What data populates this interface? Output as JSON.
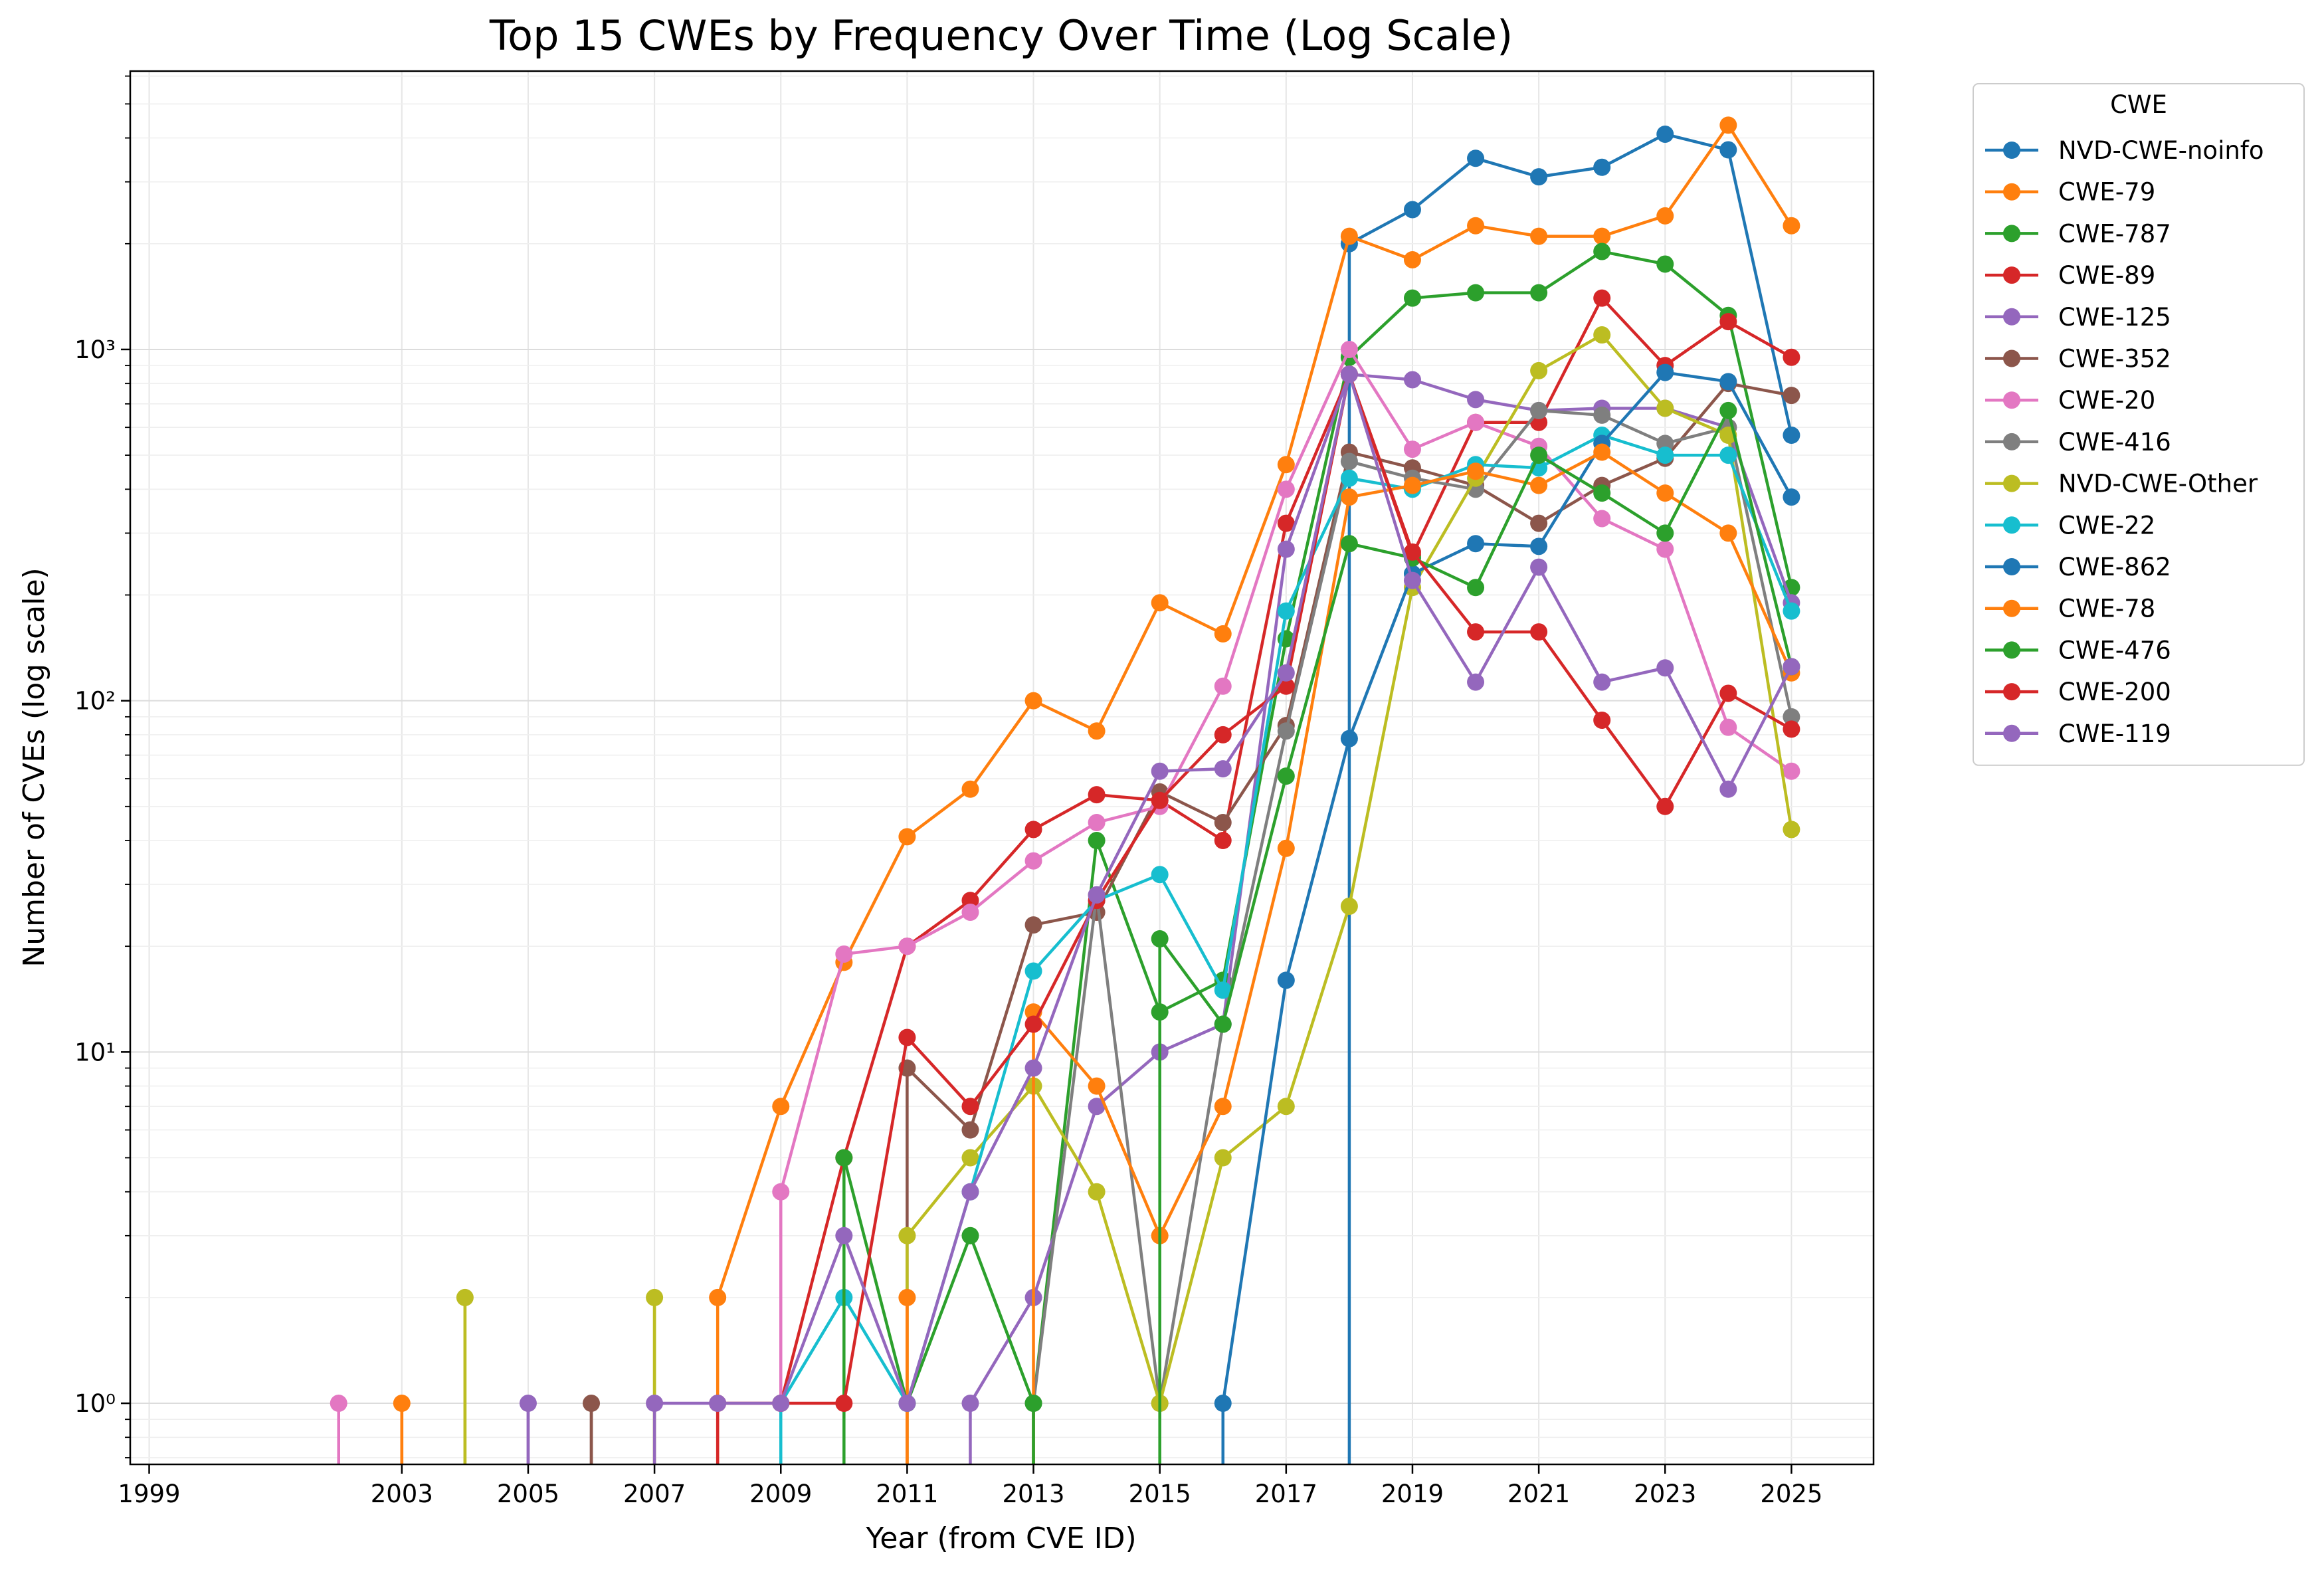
{
  "chart_data": {
    "type": "line",
    "title": "Top 15 CWEs by Frequency Over Time (Log Scale)",
    "xlabel": "Year (from CVE ID)",
    "ylabel": "Number of CVEs (log scale)",
    "yscale": "log",
    "xlim": [
      1998.7,
      2026.3
    ],
    "ylim": [
      0.67,
      6200
    ],
    "x_ticks": [
      "1999",
      "2003",
      "2005",
      "2007",
      "2009",
      "2011",
      "2013",
      "2015",
      "2017",
      "2019",
      "2021",
      "2023",
      "2025"
    ],
    "y_ticks": [
      "10⁰",
      "10¹",
      "10²",
      "10³"
    ],
    "grid": true,
    "legend": {
      "title": "CWE",
      "position": "outside-top-right"
    },
    "series": [
      {
        "name": "NVD-CWE-noinfo",
        "color": "#1f77b4",
        "points": [
          [
            2018,
            2000
          ],
          [
            2019,
            2500
          ],
          [
            2020,
            3500
          ],
          [
            2021,
            3100
          ],
          [
            2022,
            3300
          ],
          [
            2023,
            4100
          ],
          [
            2024,
            3700
          ],
          [
            2025,
            570
          ]
        ]
      },
      {
        "name": "CWE-79",
        "color": "#ff7f0e",
        "points": [
          [
            2003,
            1
          ],
          [
            2008,
            2
          ],
          [
            2009,
            7
          ],
          [
            2010,
            18
          ],
          [
            2011,
            41
          ],
          [
            2012,
            56
          ],
          [
            2013,
            100
          ],
          [
            2014,
            82
          ],
          [
            2015,
            190
          ],
          [
            2016,
            155
          ],
          [
            2017,
            470
          ],
          [
            2018,
            2100
          ],
          [
            2019,
            1800
          ],
          [
            2020,
            2250
          ],
          [
            2021,
            2100
          ],
          [
            2022,
            2100
          ],
          [
            2023,
            2400
          ],
          [
            2024,
            4350
          ],
          [
            2025,
            2250
          ]
        ]
      },
      {
        "name": "CWE-787",
        "color": "#2ca02c",
        "points": [
          [
            2013,
            1
          ],
          [
            2014,
            40
          ],
          [
            2015,
            13
          ],
          [
            2016,
            16
          ],
          [
            2017,
            150
          ],
          [
            2018,
            950
          ],
          [
            2019,
            1400
          ],
          [
            2020,
            1450
          ],
          [
            2021,
            1450
          ],
          [
            2022,
            1900
          ],
          [
            2023,
            1750
          ],
          [
            2024,
            1250
          ],
          [
            2025,
            210
          ]
        ]
      },
      {
        "name": "CWE-89",
        "color": "#d62728",
        "points": [
          [
            2009,
            1
          ],
          [
            2010,
            5
          ],
          [
            2011,
            20
          ],
          [
            2012,
            27
          ],
          [
            2013,
            43
          ],
          [
            2014,
            54
          ],
          [
            2015,
            52
          ],
          [
            2016,
            40
          ],
          [
            2017,
            320
          ],
          [
            2018,
            850
          ],
          [
            2019,
            260
          ],
          [
            2020,
            620
          ],
          [
            2021,
            620
          ],
          [
            2022,
            1400
          ],
          [
            2023,
            900
          ],
          [
            2024,
            1200
          ],
          [
            2025,
            950
          ]
        ]
      },
      {
        "name": "CWE-125",
        "color": "#9467bd",
        "points": [
          [
            2012,
            1
          ],
          [
            2013,
            2
          ],
          [
            2014,
            7
          ],
          [
            2015,
            10
          ],
          [
            2016,
            12
          ],
          [
            2017,
            270
          ],
          [
            2018,
            850
          ],
          [
            2019,
            820
          ],
          [
            2020,
            720
          ],
          [
            2021,
            670
          ],
          [
            2022,
            680
          ],
          [
            2023,
            680
          ],
          [
            2024,
            600
          ],
          [
            2025,
            190
          ]
        ]
      },
      {
        "name": "CWE-352",
        "color": "#8c564b",
        "points": [
          [
            2006,
            1
          ],
          [
            2011,
            9
          ],
          [
            2012,
            6
          ],
          [
            2013,
            23
          ],
          [
            2014,
            25
          ],
          [
            2015,
            55
          ],
          [
            2016,
            45
          ],
          [
            2017,
            85
          ],
          [
            2018,
            510
          ],
          [
            2019,
            460
          ],
          [
            2020,
            410
          ],
          [
            2021,
            320
          ],
          [
            2022,
            410
          ],
          [
            2023,
            490
          ],
          [
            2024,
            800
          ],
          [
            2025,
            740
          ]
        ]
      },
      {
        "name": "CWE-20",
        "color": "#e377c2",
        "points": [
          [
            2002,
            1
          ],
          [
            2009,
            4
          ],
          [
            2010,
            19
          ],
          [
            2011,
            20
          ],
          [
            2012,
            25
          ],
          [
            2013,
            35
          ],
          [
            2014,
            45
          ],
          [
            2015,
            50
          ],
          [
            2016,
            110
          ],
          [
            2017,
            400
          ],
          [
            2018,
            1000
          ],
          [
            2019,
            520
          ],
          [
            2020,
            620
          ],
          [
            2021,
            530
          ],
          [
            2022,
            330
          ],
          [
            2023,
            270
          ],
          [
            2024,
            84
          ],
          [
            2025,
            63
          ]
        ]
      },
      {
        "name": "CWE-416",
        "color": "#7f7f7f",
        "points": [
          [
            2013,
            1
          ],
          [
            2014,
            28
          ],
          [
            2015,
            1
          ],
          [
            2016,
            12
          ],
          [
            2017,
            82
          ],
          [
            2018,
            480
          ],
          [
            2019,
            430
          ],
          [
            2020,
            400
          ],
          [
            2021,
            670
          ],
          [
            2022,
            650
          ],
          [
            2023,
            540
          ],
          [
            2024,
            600
          ],
          [
            2025,
            90
          ]
        ]
      },
      {
        "name": "NVD-CWE-Other",
        "color": "#bcbd22",
        "points": [
          [
            2004,
            2
          ],
          [
            2007,
            2
          ],
          [
            2011,
            3
          ],
          [
            2012,
            5
          ],
          [
            2013,
            8
          ],
          [
            2014,
            4
          ],
          [
            2015,
            1
          ],
          [
            2016,
            5
          ],
          [
            2017,
            7
          ],
          [
            2018,
            26
          ],
          [
            2019,
            210
          ],
          [
            2020,
            430
          ],
          [
            2021,
            870
          ],
          [
            2022,
            1100
          ],
          [
            2023,
            680
          ],
          [
            2024,
            570
          ],
          [
            2025,
            43
          ]
        ]
      },
      {
        "name": "CWE-22",
        "color": "#17becf",
        "points": [
          [
            2009,
            1
          ],
          [
            2010,
            2
          ],
          [
            2011,
            1
          ],
          [
            2012,
            4
          ],
          [
            2013,
            17
          ],
          [
            2014,
            27
          ],
          [
            2015,
            32
          ],
          [
            2016,
            15
          ],
          [
            2017,
            180
          ],
          [
            2018,
            430
          ],
          [
            2019,
            400
          ],
          [
            2020,
            470
          ],
          [
            2021,
            460
          ],
          [
            2022,
            570
          ],
          [
            2023,
            500
          ],
          [
            2024,
            500
          ],
          [
            2025,
            180
          ]
        ]
      },
      {
        "name": "CWE-862",
        "color": "#1f77b4",
        "points": [
          [
            2016,
            1
          ],
          [
            2017,
            16
          ],
          [
            2018,
            78
          ],
          [
            2019,
            230
          ],
          [
            2020,
            280
          ],
          [
            2021,
            275
          ],
          [
            2022,
            540
          ],
          [
            2023,
            860
          ],
          [
            2024,
            810
          ],
          [
            2025,
            380
          ]
        ]
      },
      {
        "name": "CWE-78",
        "color": "#ff7f0e",
        "points": [
          [
            2011,
            2
          ],
          [
            2013,
            13
          ],
          [
            2014,
            8
          ],
          [
            2015,
            3
          ],
          [
            2016,
            7
          ],
          [
            2017,
            38
          ],
          [
            2018,
            380
          ],
          [
            2019,
            410
          ],
          [
            2020,
            450
          ],
          [
            2021,
            410
          ],
          [
            2022,
            510
          ],
          [
            2023,
            390
          ],
          [
            2024,
            300
          ],
          [
            2025,
            120
          ]
        ]
      },
      {
        "name": "CWE-476",
        "color": "#2ca02c",
        "points": [
          [
            2010,
            5
          ],
          [
            2011,
            1
          ],
          [
            2012,
            3
          ],
          [
            2013,
            1
          ],
          [
            2015,
            21
          ],
          [
            2016,
            12
          ],
          [
            2017,
            61
          ],
          [
            2018,
            280
          ],
          [
            2019,
            255
          ],
          [
            2020,
            210
          ],
          [
            2021,
            500
          ],
          [
            2022,
            390
          ],
          [
            2023,
            300
          ],
          [
            2024,
            670
          ],
          [
            2025,
            125
          ]
        ]
      },
      {
        "name": "CWE-200",
        "color": "#d62728",
        "points": [
          [
            2008,
            1
          ],
          [
            2009,
            1
          ],
          [
            2010,
            1
          ],
          [
            2011,
            11
          ],
          [
            2012,
            7
          ],
          [
            2013,
            12
          ],
          [
            2014,
            27
          ],
          [
            2015,
            52
          ],
          [
            2016,
            80
          ],
          [
            2017,
            110
          ],
          [
            2018,
            850
          ],
          [
            2019,
            265
          ],
          [
            2020,
            157
          ],
          [
            2021,
            157
          ],
          [
            2022,
            88
          ],
          [
            2023,
            50
          ],
          [
            2024,
            105
          ],
          [
            2025,
            83
          ]
        ]
      },
      {
        "name": "CWE-119",
        "color": "#9467bd",
        "points": [
          [
            2005,
            1
          ],
          [
            2007,
            1
          ],
          [
            2008,
            1
          ],
          [
            2009,
            1
          ],
          [
            2010,
            3
          ],
          [
            2011,
            1
          ],
          [
            2012,
            4
          ],
          [
            2013,
            9
          ],
          [
            2014,
            28
          ],
          [
            2015,
            63
          ],
          [
            2016,
            64
          ],
          [
            2017,
            120
          ],
          [
            2018,
            850
          ],
          [
            2019,
            220
          ],
          [
            2020,
            113
          ],
          [
            2021,
            240
          ],
          [
            2022,
            113
          ],
          [
            2023,
            124
          ],
          [
            2024,
            56
          ],
          [
            2025,
            125
          ]
        ]
      }
    ]
  }
}
